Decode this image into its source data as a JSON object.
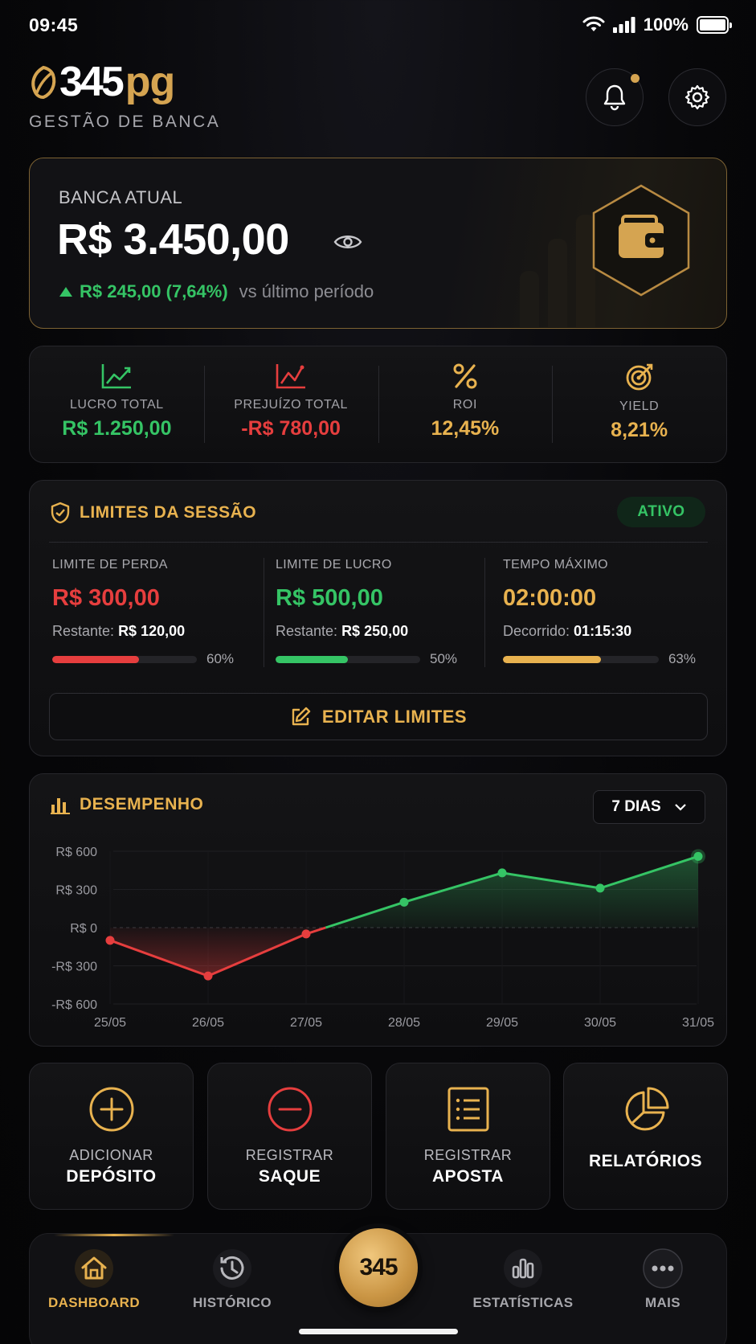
{
  "status": {
    "time": "09:45",
    "battery": "100%"
  },
  "header": {
    "logo_number": "345",
    "logo_suffix": "pg",
    "subtitle": "GESTÃO DE BANCA",
    "has_notification": true
  },
  "balance": {
    "label": "BANCA ATUAL",
    "value": "R$ 3.450,00",
    "change": "R$ 245,00 (7,64%)",
    "change_suffix": "vs último período"
  },
  "stats": [
    {
      "label": "LUCRO TOTAL",
      "value": "R$ 1.250,00",
      "color": "#35c465",
      "icon": "trend-up-green-icon"
    },
    {
      "label": "PREJUÍZO TOTAL",
      "value": "-R$ 780,00",
      "color": "#e63e3e",
      "icon": "trend-red-icon"
    },
    {
      "label": "ROI",
      "value": "12,45%",
      "color": "#e8b24f",
      "icon": "percent-icon"
    },
    {
      "label": "YIELD",
      "value": "8,21%",
      "color": "#e8b24f",
      "icon": "target-icon"
    }
  ],
  "limits": {
    "title": "LIMITES DA SESSÃO",
    "status": "ATIVO",
    "items": [
      {
        "label": "LIMITE DE PERDA",
        "value": "R$ 300,00",
        "rest_label": "Restante:",
        "rest_value": "R$ 120,00",
        "progress": 60,
        "progress_label": "60%",
        "color": "#e63e3e"
      },
      {
        "label": "LIMITE DE LUCRO",
        "value": "R$ 500,00",
        "rest_label": "Restante:",
        "rest_value": "R$ 250,00",
        "progress": 50,
        "progress_label": "50%",
        "color": "#35c465"
      },
      {
        "label": "TEMPO MÁXIMO",
        "value": "02:00:00",
        "rest_label": "Decorrido:",
        "rest_value": "01:15:30",
        "progress": 63,
        "progress_label": "63%",
        "color": "#e8b24f"
      }
    ],
    "edit_label": "EDITAR LIMITES"
  },
  "performance": {
    "title": "DESEMPENHO",
    "period": "7 DIAS"
  },
  "chart_data": {
    "type": "line",
    "title": "DESEMPENHO",
    "x": [
      "25/05",
      "26/05",
      "27/05",
      "28/05",
      "29/05",
      "30/05",
      "31/05"
    ],
    "series": [
      {
        "values": [
          -100,
          -380,
          -50,
          200,
          430,
          310,
          560
        ]
      }
    ],
    "ylim": [
      -600,
      600
    ],
    "yticks": [
      600,
      300,
      0,
      -300,
      -600
    ],
    "ytick_labels": [
      "R$ 600",
      "R$ 300",
      "R$ 0",
      "-R$ 300",
      "-R$ 600"
    ],
    "positive_color": "#35c465",
    "negative_color": "#e63e3e",
    "grid": true
  },
  "actions": [
    {
      "top": "ADICIONAR",
      "bottom": "DEPÓSITO",
      "icon": "plus-circle-icon"
    },
    {
      "top": "REGISTRAR",
      "bottom": "SAQUE",
      "icon": "minus-circle-icon"
    },
    {
      "top": "REGISTRAR",
      "bottom": "APOSTA",
      "icon": "list-document-icon"
    },
    {
      "top": "",
      "bottom": "RELATÓRIOS",
      "icon": "pie-chart-icon"
    }
  ],
  "nav": {
    "items": [
      {
        "label": "DASHBOARD",
        "active": true,
        "icon": "home-icon"
      },
      {
        "label": "HISTÓRICO",
        "active": false,
        "icon": "history-icon"
      },
      {
        "label": "ESTATÍSTICAS",
        "active": false,
        "icon": "stats-icon"
      },
      {
        "label": "MAIS",
        "active": false,
        "icon": "more-icon"
      }
    ],
    "center_label": "345"
  }
}
